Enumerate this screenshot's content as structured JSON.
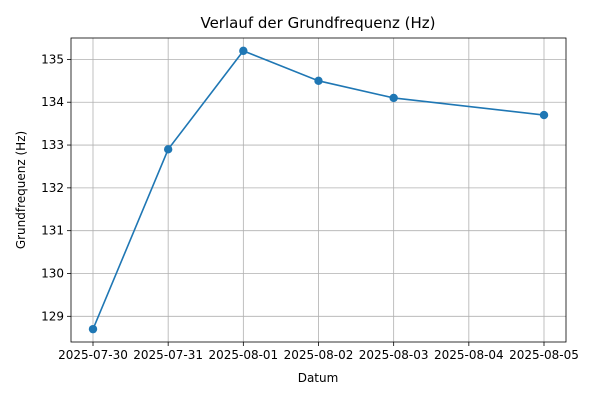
{
  "chart_data": {
    "type": "line",
    "title": "Verlauf der Grundfrequenz (Hz)",
    "xlabel": "Datum",
    "ylabel": "Grundfrequenz (Hz)",
    "x": [
      "2025-07-30",
      "2025-07-31",
      "2025-08-01",
      "2025-08-02",
      "2025-08-03",
      "2025-08-05"
    ],
    "series": [
      {
        "values": [
          128.7,
          132.9,
          135.2,
          134.5,
          134.1,
          133.7
        ]
      }
    ],
    "xticks": [
      "2025-07-30",
      "2025-07-31",
      "2025-08-01",
      "2025-08-02",
      "2025-08-03",
      "2025-08-04",
      "2025-08-05"
    ],
    "yticks": [
      129,
      130,
      131,
      132,
      133,
      134,
      135
    ],
    "ylim": [
      128.4,
      135.5
    ],
    "grid": true,
    "colors": {
      "line": "#1f77b4",
      "marker": "#1f77b4",
      "grid": "#b0b0b0"
    }
  }
}
